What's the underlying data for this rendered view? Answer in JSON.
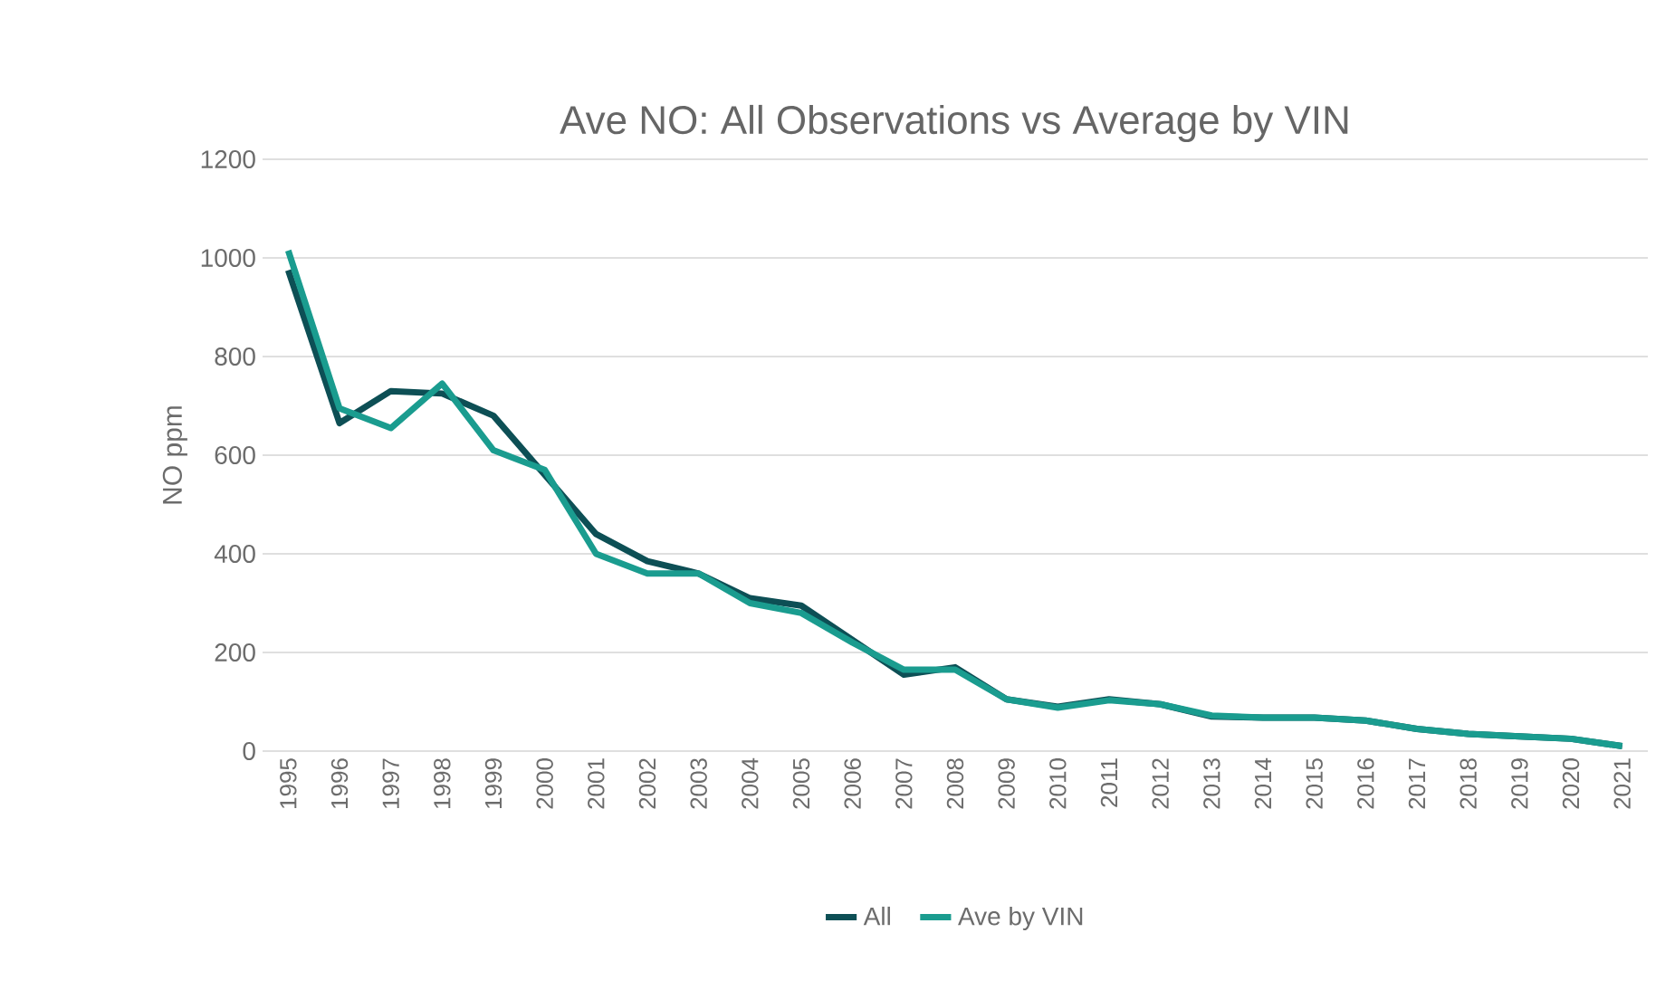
{
  "chart_data": {
    "type": "line",
    "title": "Ave NO: All Observations vs Average by VIN",
    "ylabel": "NO ppm",
    "categories": [
      "1995",
      "1996",
      "1997",
      "1998",
      "1999",
      "2000",
      "2001",
      "2002",
      "2003",
      "2004",
      "2005",
      "2006",
      "2007",
      "2008",
      "2009",
      "2010",
      "2011",
      "2012",
      "2013",
      "2014",
      "2015",
      "2016",
      "2017",
      "2018",
      "2019",
      "2020",
      "2021"
    ],
    "series": [
      {
        "name": "All",
        "color": "#0d4f55",
        "values": [
          975,
          665,
          730,
          725,
          680,
          560,
          440,
          385,
          360,
          310,
          295,
          225,
          155,
          170,
          105,
          90,
          105,
          95,
          70,
          68,
          68,
          62,
          45,
          35,
          30,
          25,
          10
        ]
      },
      {
        "name": "Ave by VIN",
        "color": "#1a9c8f",
        "values": [
          1015,
          695,
          655,
          745,
          610,
          570,
          400,
          360,
          360,
          300,
          280,
          220,
          165,
          165,
          105,
          88,
          103,
          95,
          72,
          68,
          68,
          62,
          45,
          35,
          30,
          25,
          10
        ]
      }
    ],
    "ylim": [
      0,
      1200
    ],
    "yticks": [
      0,
      200,
      400,
      600,
      800,
      1000,
      1200
    ],
    "grid": "y",
    "legend": "bottom",
    "marker": "none",
    "line_style": "solid"
  }
}
